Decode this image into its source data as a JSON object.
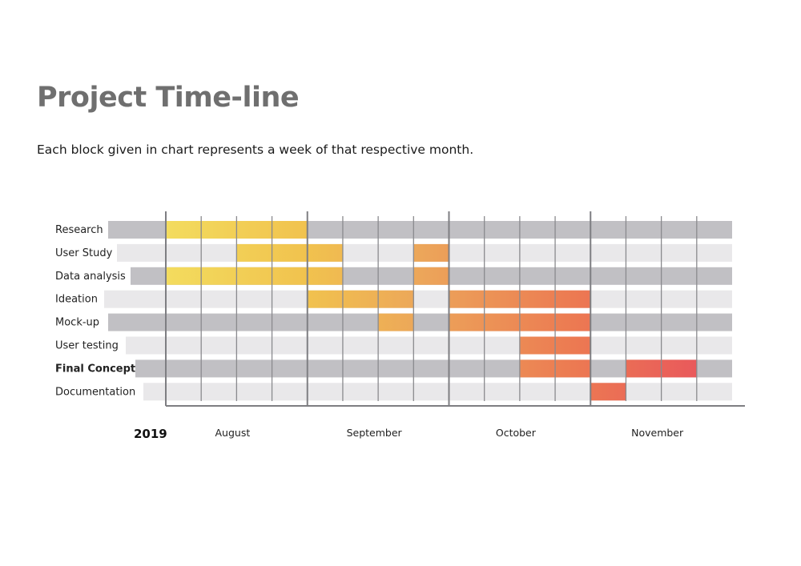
{
  "header": {
    "title": "Project Time-line",
    "subtitle": "Each block given in chart represents a week of that respective month."
  },
  "chart_data": {
    "type": "gantt",
    "title": "Project Time-line",
    "subtitle": "Each block given in chart represents a week of that respective month.",
    "year": "2019",
    "months": [
      "August",
      "September",
      "October",
      "November"
    ],
    "weeks_per_month": 4,
    "colors": {
      "row_dark": "#c1c0c4",
      "row_light": "#e9e8ea",
      "gradient_start": "#f3dc5e",
      "gradient_mid": "#eca65a",
      "gradient_end": "#e8605e",
      "grid_line": "#8a8a8e"
    },
    "tasks": [
      {
        "name": "Research",
        "bold": false,
        "active_weeks": [
          1,
          2,
          3,
          4
        ]
      },
      {
        "name": "User Study",
        "bold": false,
        "active_weeks": [
          3,
          4,
          5,
          8
        ]
      },
      {
        "name": "Data analysis",
        "bold": false,
        "active_weeks": [
          1,
          2,
          3,
          4,
          5,
          8
        ]
      },
      {
        "name": "Ideation",
        "bold": false,
        "active_weeks": [
          5,
          6,
          7,
          9,
          10,
          11,
          12
        ]
      },
      {
        "name": "Mock-up",
        "bold": false,
        "active_weeks": [
          7,
          9,
          10,
          11,
          12
        ]
      },
      {
        "name": "User testing",
        "bold": false,
        "active_weeks": [
          11,
          12
        ]
      },
      {
        "name": "Final Concept",
        "bold": true,
        "active_weeks": [
          11,
          12,
          14,
          15
        ]
      },
      {
        "name": "Documentation",
        "bold": false,
        "active_weeks": [
          13
        ]
      }
    ]
  }
}
